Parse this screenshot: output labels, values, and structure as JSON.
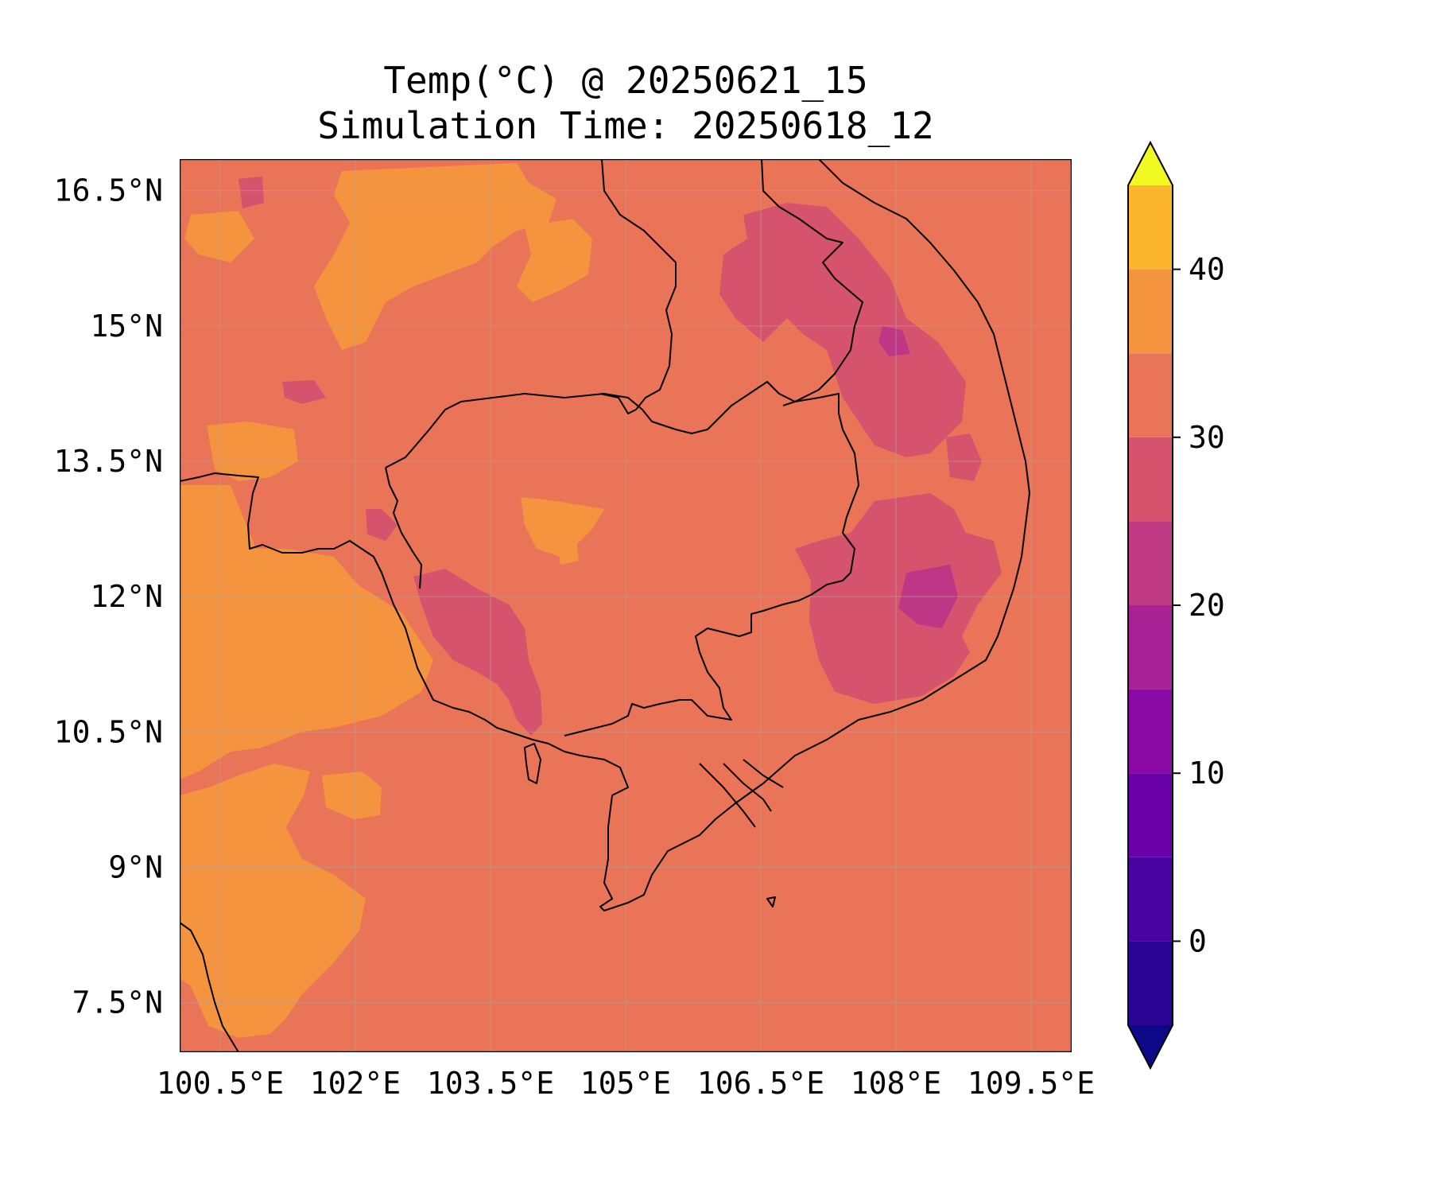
{
  "title": "Temp(°C) @ 20250621_15",
  "subtitle": "Simulation Time: 20250618_12",
  "map": {
    "lon_range": [
      100.05,
      109.95
    ],
    "lat_range": [
      6.95,
      16.85
    ],
    "lon_ticks": [
      {
        "value": 100.5,
        "label": "100.5°E"
      },
      {
        "value": 102.0,
        "label": "102°E"
      },
      {
        "value": 103.5,
        "label": "103.5°E"
      },
      {
        "value": 105.0,
        "label": "105°E"
      },
      {
        "value": 106.5,
        "label": "106.5°E"
      },
      {
        "value": 108.0,
        "label": "108°E"
      },
      {
        "value": 109.5,
        "label": "109.5°E"
      }
    ],
    "lat_ticks": [
      {
        "value": 16.5,
        "label": "16.5°N"
      },
      {
        "value": 15.0,
        "label": "15°N"
      },
      {
        "value": 13.5,
        "label": "13.5°N"
      },
      {
        "value": 12.0,
        "label": "12°N"
      },
      {
        "value": 10.5,
        "label": "10.5°N"
      },
      {
        "value": 9.0,
        "label": "9°N"
      },
      {
        "value": 7.5,
        "label": "7.5°N"
      }
    ],
    "grid": true,
    "background_band": "25-30",
    "colors": {
      "25-30": "#ea7457",
      "30-35": "#f5943f",
      "20-25": "#d6536e",
      "15-20": "#bd3786"
    }
  },
  "colorbar": {
    "range": [
      -5,
      45
    ],
    "extend": "both",
    "levels": [
      -5,
      0,
      5,
      10,
      15,
      20,
      25,
      30,
      35,
      40,
      45
    ],
    "colors": [
      "#2a0593",
      "#4903a0",
      "#6a00a8",
      "#8b0aa5",
      "#a82296",
      "#c03a83",
      "#d6536e",
      "#ea7457",
      "#f5943f",
      "#fcb62d",
      "#f3e12b"
    ],
    "under_color": "#0d0887",
    "over_color": "#f0f921",
    "ticks": [
      {
        "value": 0,
        "label": "0"
      },
      {
        "value": 10,
        "label": "10"
      },
      {
        "value": 20,
        "label": "20"
      },
      {
        "value": 30,
        "label": "30"
      },
      {
        "value": 40,
        "label": "40"
      }
    ]
  }
}
